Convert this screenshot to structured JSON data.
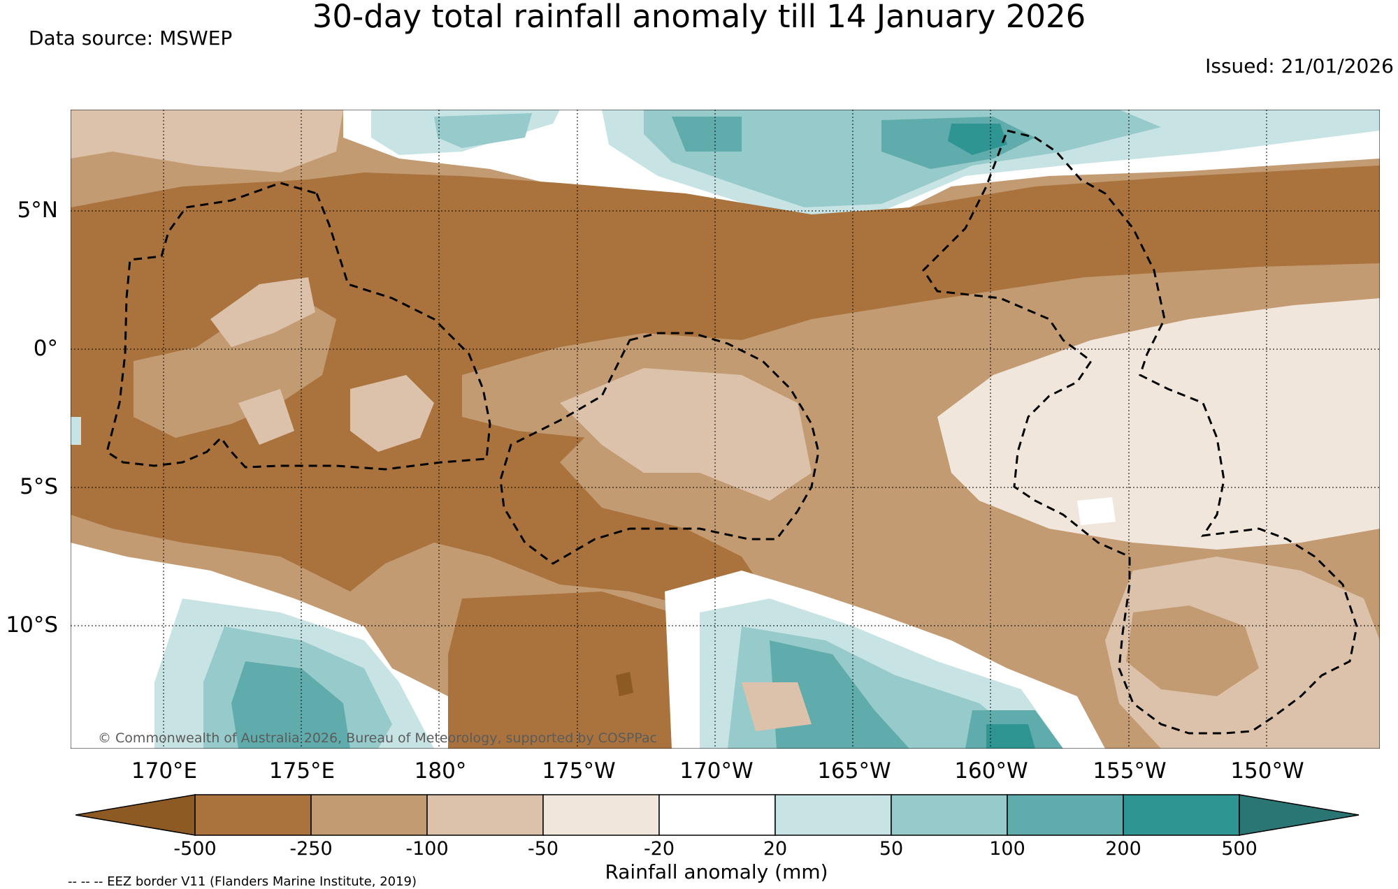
{
  "title": "30-day total rainfall anomaly till 14 January 2026",
  "data_source": "Data source: MSWEP",
  "issued": "Issued: 21/01/2026",
  "copyright": "© Commonwealth of Australia 2026, Bureau of Meteorology, supported by COSPPac",
  "eez_note": "-- -- -- EEZ border V11 (Flanders Marine Institute, 2019)",
  "map": {
    "lat_labels": [
      "5°N",
      "0°",
      "5°S",
      "10°S"
    ],
    "lon_labels": [
      "170°E",
      "175°E",
      "180°",
      "175°W",
      "170°W",
      "165°W",
      "160°W",
      "155°W",
      "150°W"
    ],
    "lon_range": [
      166.7,
      214.2
    ],
    "lat_range": [
      -14.2,
      8.7
    ],
    "grid": true,
    "eez_border_style": "dashed"
  },
  "colorbar": {
    "title": "Rainfall anomaly (mm)",
    "tick_labels": [
      "-500",
      "-250",
      "-100",
      "-50",
      "-20",
      "20",
      "50",
      "100",
      "200",
      "500"
    ],
    "colors": [
      "#8c5a22",
      "#aa733e",
      "#c39b72",
      "#dcc2aa",
      "#f1e6dc",
      "#ffffff",
      "#c8e3e4",
      "#96cacb",
      "#60acac",
      "#2f9593",
      "#2a7674"
    ]
  }
}
